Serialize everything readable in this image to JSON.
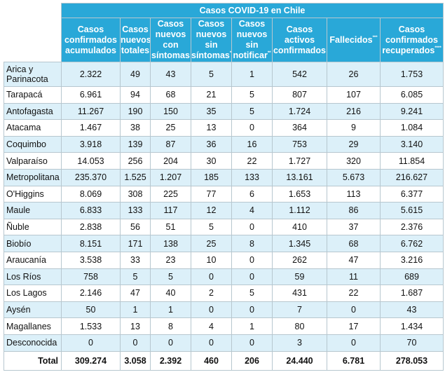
{
  "table": {
    "title": "Casos COVID-19 en Chile",
    "headers": [
      {
        "lines": [
          "Casos",
          "confirmados",
          "acumulados"
        ],
        "sup": ""
      },
      {
        "lines": [
          "Casos",
          "nuevos",
          "totales"
        ],
        "sup": ""
      },
      {
        "lines": [
          "Casos",
          "nuevos",
          "con",
          "síntomas"
        ],
        "sup": ""
      },
      {
        "lines": [
          "Casos",
          "nuevos",
          "sin",
          "síntomas"
        ],
        "sup": "*"
      },
      {
        "lines": [
          "Casos",
          "nuevos",
          "sin",
          "notificar"
        ],
        "sup": "**"
      },
      {
        "lines": [
          "Casos",
          "activos",
          "confirmados"
        ],
        "sup": ""
      },
      {
        "lines": [
          "Fallecidos"
        ],
        "sup": "***"
      },
      {
        "lines": [
          "Casos",
          "confirmados",
          "recuperados"
        ],
        "sup": "****"
      }
    ],
    "rows": [
      {
        "region": "Arica y Parinacota",
        "values": [
          "2.322",
          "49",
          "43",
          "5",
          "1",
          "542",
          "26",
          "1.753"
        ]
      },
      {
        "region": "Tarapacá",
        "values": [
          "6.961",
          "94",
          "68",
          "21",
          "5",
          "807",
          "107",
          "6.085"
        ]
      },
      {
        "region": "Antofagasta",
        "values": [
          "11.267",
          "190",
          "150",
          "35",
          "5",
          "1.724",
          "216",
          "9.241"
        ]
      },
      {
        "region": "Atacama",
        "values": [
          "1.467",
          "38",
          "25",
          "13",
          "0",
          "364",
          "9",
          "1.084"
        ]
      },
      {
        "region": "Coquimbo",
        "values": [
          "3.918",
          "139",
          "87",
          "36",
          "16",
          "753",
          "29",
          "3.140"
        ]
      },
      {
        "region": "Valparaíso",
        "values": [
          "14.053",
          "256",
          "204",
          "30",
          "22",
          "1.727",
          "320",
          "11.854"
        ]
      },
      {
        "region": "Metropolitana",
        "values": [
          "235.370",
          "1.525",
          "1.207",
          "185",
          "133",
          "13.161",
          "5.673",
          "216.627"
        ]
      },
      {
        "region": "O'Higgins",
        "values": [
          "8.069",
          "308",
          "225",
          "77",
          "6",
          "1.653",
          "113",
          "6.377"
        ]
      },
      {
        "region": "Maule",
        "values": [
          "6.833",
          "133",
          "117",
          "12",
          "4",
          "1.112",
          "86",
          "5.615"
        ]
      },
      {
        "region": "Ñuble",
        "values": [
          "2.838",
          "56",
          "51",
          "5",
          "0",
          "410",
          "37",
          "2.376"
        ]
      },
      {
        "region": "Biobío",
        "values": [
          "8.151",
          "171",
          "138",
          "25",
          "8",
          "1.345",
          "68",
          "6.762"
        ]
      },
      {
        "region": "Araucanía",
        "values": [
          "3.538",
          "33",
          "23",
          "10",
          "0",
          "262",
          "47",
          "3.216"
        ]
      },
      {
        "region": "Los Ríos",
        "values": [
          "758",
          "5",
          "5",
          "0",
          "0",
          "59",
          "11",
          "689"
        ]
      },
      {
        "region": "Los Lagos",
        "values": [
          "2.146",
          "47",
          "40",
          "2",
          "5",
          "431",
          "22",
          "1.687"
        ]
      },
      {
        "region": "Aysén",
        "values": [
          "50",
          "1",
          "1",
          "0",
          "0",
          "7",
          "0",
          "43"
        ]
      },
      {
        "region": "Magallanes",
        "values": [
          "1.533",
          "13",
          "8",
          "4",
          "1",
          "80",
          "17",
          "1.434"
        ]
      },
      {
        "region": "Desconocida",
        "values": [
          "0",
          "0",
          "0",
          "0",
          "0",
          "3",
          "0",
          "70"
        ]
      }
    ],
    "total": {
      "label": "Total",
      "values": [
        "309.274",
        "3.058",
        "2.392",
        "460",
        "206",
        "24.440",
        "6.781",
        "278.053"
      ]
    }
  },
  "colors": {
    "header_bg": "#29a8d8",
    "header_text": "#ffffff",
    "odd_row_bg": "#dcf0f9",
    "even_row_bg": "#ffffff",
    "border": "#b7c7cf"
  }
}
